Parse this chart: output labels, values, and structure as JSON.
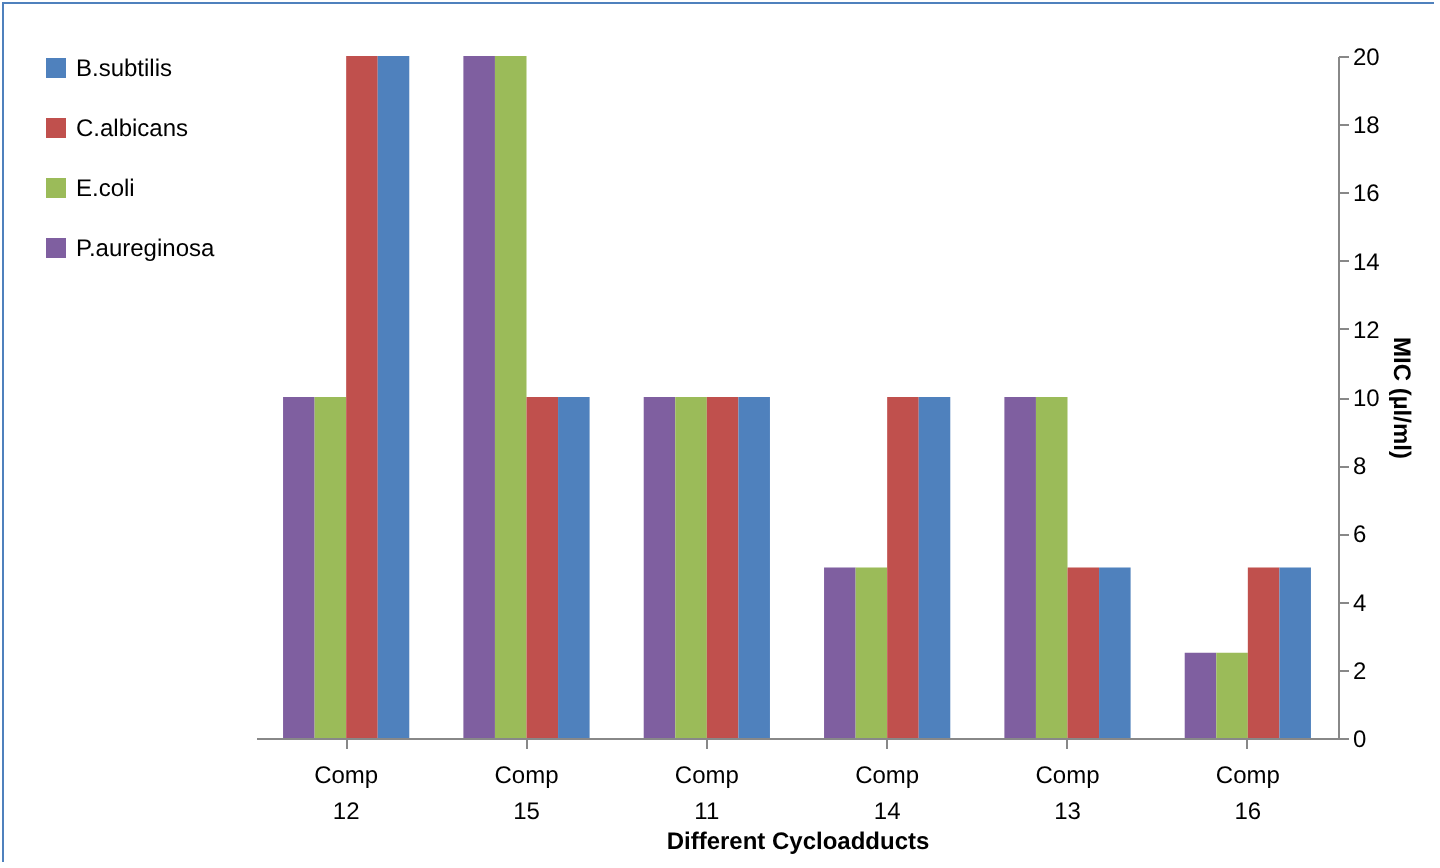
{
  "chart_data": {
    "type": "bar",
    "xlabel": "Different Cycloadducts",
    "ylabel": "MIC (µl/ml)",
    "categories": [
      "Comp 12",
      "Comp 15",
      "Comp 11",
      "Comp 14",
      "Comp 13",
      "Comp 16"
    ],
    "series": [
      {
        "name": "P.aureginosa",
        "color": "#7f5fa0",
        "values": [
          10,
          20,
          10,
          5,
          10,
          2.5
        ]
      },
      {
        "name": "E.coli",
        "color": "#9bbb59",
        "values": [
          10,
          20,
          10,
          5,
          10,
          2.5
        ]
      },
      {
        "name": "C.albicans",
        "color": "#c0504d",
        "values": [
          20,
          10,
          10,
          10,
          5,
          5
        ]
      },
      {
        "name": "B.subtilis",
        "color": "#4f81bd",
        "values": [
          20,
          10,
          10,
          10,
          5,
          5
        ]
      }
    ],
    "ylim": [
      0,
      20
    ],
    "yticks": [
      0,
      2,
      4,
      6,
      8,
      10,
      12,
      14,
      16,
      18,
      20
    ],
    "grid": false,
    "legend": "left"
  }
}
